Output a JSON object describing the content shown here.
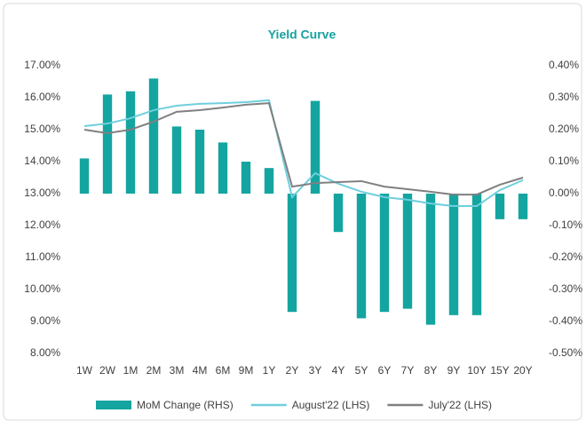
{
  "chart_data": {
    "type": "bar_line",
    "title": "Yield Curve",
    "categories": [
      "1W",
      "2W",
      "1M",
      "2M",
      "3M",
      "4M",
      "6M",
      "9M",
      "1Y",
      "2Y",
      "3Y",
      "4Y",
      "5Y",
      "6Y",
      "7Y",
      "8Y",
      "9Y",
      "10Y",
      "15Y",
      "20Y"
    ],
    "series": [
      {
        "name": "MoM Change (RHS)",
        "type": "bar",
        "axis": "y2",
        "color": "#14a5a0",
        "values": [
          0.11,
          0.31,
          0.32,
          0.36,
          0.21,
          0.2,
          0.16,
          0.1,
          0.08,
          -0.37,
          0.29,
          -0.12,
          -0.39,
          -0.37,
          -0.36,
          -0.41,
          -0.38,
          -0.38,
          -0.08,
          -0.08
        ]
      },
      {
        "name": "August'22 (LHS)",
        "type": "line",
        "color": "#6fcfde",
        "values": [
          15.11,
          15.19,
          15.36,
          15.61,
          15.75,
          15.81,
          15.83,
          15.86,
          15.92,
          12.89,
          13.64,
          13.31,
          13.06,
          12.89,
          12.81,
          12.69,
          12.61,
          12.61,
          13.11,
          13.42
        ]
      },
      {
        "name": "July'22 (LHS)",
        "type": "line",
        "color": "#808080",
        "values": [
          15.0,
          14.89,
          15.0,
          15.25,
          15.56,
          15.61,
          15.69,
          15.78,
          15.83,
          13.22,
          13.33,
          13.36,
          13.39,
          13.22,
          13.14,
          13.06,
          12.97,
          12.97,
          13.28,
          13.5
        ]
      }
    ],
    "ylim": [
      8,
      17
    ],
    "yticks": [
      {
        "value": 8,
        "label": "8.00%"
      },
      {
        "value": 9,
        "label": "9.00%"
      },
      {
        "value": 10,
        "label": "10.00%"
      },
      {
        "value": 11,
        "label": "11.00%"
      },
      {
        "value": 12,
        "label": "12.00%"
      },
      {
        "value": 13,
        "label": "13.00%"
      },
      {
        "value": 14,
        "label": "14.00%"
      },
      {
        "value": 15,
        "label": "15.00%"
      },
      {
        "value": 16,
        "label": "16.00%"
      },
      {
        "value": 17,
        "label": "17.00%"
      }
    ],
    "y2lim": [
      -0.5,
      0.4
    ],
    "y2ticks": [
      {
        "value": -0.5,
        "label": "-0.50%"
      },
      {
        "value": -0.4,
        "label": "-0.40%"
      },
      {
        "value": -0.3,
        "label": "-0.30%"
      },
      {
        "value": -0.2,
        "label": "-0.20%"
      },
      {
        "value": -0.1,
        "label": "-0.10%"
      },
      {
        "value": 0,
        "label": "0.00%"
      },
      {
        "value": 0.1,
        "label": "0.10%"
      },
      {
        "value": 0.2,
        "label": "0.20%"
      },
      {
        "value": 0.3,
        "label": "0.30%"
      },
      {
        "value": 0.4,
        "label": "0.40%"
      }
    ]
  }
}
